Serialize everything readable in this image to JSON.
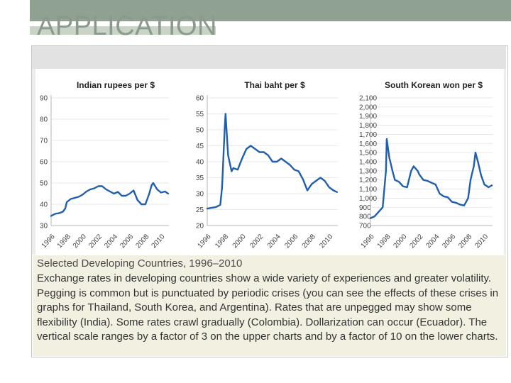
{
  "slide": {
    "title": "APPLICATION",
    "caption_title": "Selected Developing Countries, 1996–2010",
    "caption_body": "Exchange rates in developing countries show a wide variety of experiences and greater volatility. Pegging is common but is punctuated by periodic crises (you can see the effects of these crises in graphs for Thailand, South Korea, and Argentina). Rates that are unpegged may show some flexibility (India). Some rates crawl gradually (Colombia). Dollarization can occur (Ecuador). The vertical scale ranges by a factor of 3 on the upper charts and by a factor of 10 on the lower charts."
  },
  "colors": {
    "line": "#1f5fae",
    "caption_bg": "#f2f0e0",
    "top_bar": "#8fa291"
  },
  "chart_data": [
    {
      "type": "line",
      "title": "Indian rupees per $",
      "ylim": [
        30,
        90
      ],
      "yticks": [
        30,
        40,
        50,
        60,
        70,
        80,
        90
      ],
      "xlim": [
        1996,
        2011
      ],
      "xticks": [
        "1996",
        "1998",
        "2000",
        "2002",
        "2004",
        "2006",
        "2008",
        "2010"
      ],
      "grid": true,
      "series": [
        {
          "x": [
            1996,
            1996.5,
            1997,
            1997.5,
            1997.8,
            1998,
            1998.5,
            1999,
            1999.5,
            2000,
            2000.5,
            2001,
            2001.5,
            2002,
            2002.5,
            2003,
            2003.5,
            2004,
            2004.5,
            2005,
            2005.5,
            2006,
            2006.5,
            2007,
            2007.5,
            2008,
            2008.5,
            2008.8,
            2009,
            2009.5,
            2010,
            2010.5,
            2010.9
          ],
          "y": [
            34.5,
            35.5,
            35.8,
            36.5,
            38,
            41,
            42.5,
            43,
            43.5,
            44.5,
            46,
            47,
            47.5,
            48.5,
            48.5,
            47,
            46,
            45,
            45.8,
            44,
            44,
            45,
            46.5,
            42,
            40,
            40,
            45,
            49,
            50,
            47,
            45.5,
            46,
            45
          ]
        }
      ]
    },
    {
      "type": "line",
      "title": "Thai baht per $",
      "ylim": [
        20,
        60
      ],
      "yticks": [
        20,
        25,
        30,
        35,
        40,
        45,
        50,
        55,
        60
      ],
      "xlim": [
        1996,
        2011
      ],
      "xticks": [
        "1996",
        "1998",
        "2000",
        "2002",
        "2004",
        "2006",
        "2008",
        "2010"
      ],
      "grid": true,
      "series": [
        {
          "x": [
            1996,
            1997,
            1997.5,
            1997.7,
            1998,
            1998.1,
            1998.4,
            1998.8,
            1999,
            1999.5,
            2000,
            2000.5,
            2001,
            2001.5,
            2002,
            2002.5,
            2003,
            2003.5,
            2004,
            2004.5,
            2005,
            2005.5,
            2006,
            2006.5,
            2007,
            2007.5,
            2008,
            2008.5,
            2009,
            2009.5,
            2010,
            2010.5,
            2010.9
          ],
          "y": [
            25.3,
            25.8,
            26.5,
            32,
            50,
            55,
            42,
            37,
            38,
            37.5,
            41,
            44,
            45,
            44,
            43,
            43,
            42,
            40,
            40,
            41,
            40,
            39,
            37.5,
            37,
            34.5,
            31,
            33,
            34,
            35,
            34,
            32,
            31,
            30.5
          ]
        }
      ]
    },
    {
      "type": "line",
      "title": "South Korean won  per $",
      "ylim": [
        700,
        2100
      ],
      "yticks": [
        700,
        800,
        900,
        1000,
        1100,
        1200,
        1300,
        1400,
        1500,
        1600,
        1700,
        1800,
        1900,
        2000,
        2100
      ],
      "xlim": [
        1996,
        2011
      ],
      "xticks": [
        "1996",
        "1998",
        "2000",
        "2002",
        "2004",
        "2006",
        "2008",
        "2010"
      ],
      "grid": true,
      "series": [
        {
          "x": [
            1996,
            1996.5,
            1997,
            1997.5,
            1997.9,
            1998,
            1998.3,
            1998.7,
            1999,
            1999.5,
            2000,
            2000.5,
            2001,
            2001.3,
            2001.8,
            2002,
            2002.5,
            2003,
            2003.5,
            2004,
            2004.5,
            2005,
            2005.5,
            2006,
            2006.5,
            2007,
            2007.5,
            2008,
            2008.3,
            2008.7,
            2008.9,
            2009.2,
            2009.6,
            2010,
            2010.5,
            2010.9
          ],
          "y": [
            780,
            800,
            850,
            900,
            1300,
            1650,
            1450,
            1300,
            1200,
            1180,
            1130,
            1120,
            1300,
            1350,
            1300,
            1260,
            1200,
            1190,
            1170,
            1150,
            1050,
            1020,
            1010,
            960,
            950,
            930,
            920,
            1000,
            1200,
            1350,
            1500,
            1400,
            1250,
            1150,
            1120,
            1140
          ]
        }
      ]
    }
  ]
}
